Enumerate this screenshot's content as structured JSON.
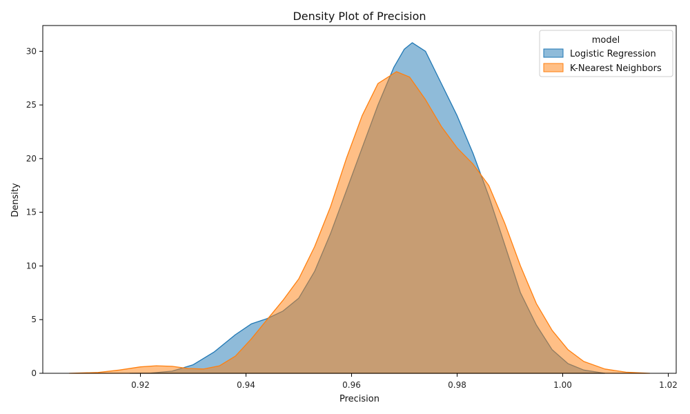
{
  "chart_data": {
    "type": "area",
    "title": "Density Plot of Precision",
    "xlabel": "Precision",
    "ylabel": "Density",
    "xlim": [
      0.9015,
      1.0215
    ],
    "ylim": [
      0,
      32.4
    ],
    "xticks": [
      0.92,
      0.94,
      0.96,
      0.98,
      1.0,
      1.02
    ],
    "xtick_labels": [
      "0.92",
      "0.94",
      "0.96",
      "0.98",
      "1.00",
      "1.02"
    ],
    "yticks": [
      0,
      5,
      10,
      15,
      20,
      25,
      30
    ],
    "ytick_labels": [
      "0",
      "5",
      "10",
      "15",
      "20",
      "25",
      "30"
    ],
    "grid": false,
    "legend": {
      "title": "model",
      "placement": "top-right"
    },
    "series": [
      {
        "name": "Logistic Regression",
        "color": "#1f77b4",
        "fill_opacity": 0.5,
        "points": [
          [
            0.918,
            0.0
          ],
          [
            0.922,
            0.02
          ],
          [
            0.926,
            0.2
          ],
          [
            0.93,
            0.8
          ],
          [
            0.934,
            2.0
          ],
          [
            0.938,
            3.6
          ],
          [
            0.941,
            4.6
          ],
          [
            0.944,
            5.1
          ],
          [
            0.947,
            5.8
          ],
          [
            0.95,
            7.0
          ],
          [
            0.953,
            9.5
          ],
          [
            0.956,
            13.0
          ],
          [
            0.959,
            17.0
          ],
          [
            0.962,
            21.0
          ],
          [
            0.965,
            25.0
          ],
          [
            0.968,
            28.5
          ],
          [
            0.97,
            30.2
          ],
          [
            0.9715,
            30.8
          ],
          [
            0.974,
            30.0
          ],
          [
            0.977,
            27.0
          ],
          [
            0.98,
            24.0
          ],
          [
            0.983,
            20.5
          ],
          [
            0.986,
            16.5
          ],
          [
            0.989,
            12.0
          ],
          [
            0.992,
            7.5
          ],
          [
            0.995,
            4.5
          ],
          [
            0.998,
            2.2
          ],
          [
            1.001,
            0.9
          ],
          [
            1.004,
            0.3
          ],
          [
            1.008,
            0.0
          ]
        ]
      },
      {
        "name": "K-Nearest Neighbors",
        "color": "#ff7f0e",
        "fill_opacity": 0.5,
        "points": [
          [
            0.9065,
            0.0
          ],
          [
            0.912,
            0.08
          ],
          [
            0.916,
            0.3
          ],
          [
            0.92,
            0.6
          ],
          [
            0.923,
            0.7
          ],
          [
            0.926,
            0.65
          ],
          [
            0.929,
            0.45
          ],
          [
            0.932,
            0.4
          ],
          [
            0.935,
            0.7
          ],
          [
            0.938,
            1.6
          ],
          [
            0.941,
            3.2
          ],
          [
            0.944,
            5.0
          ],
          [
            0.947,
            6.8
          ],
          [
            0.95,
            8.8
          ],
          [
            0.953,
            11.8
          ],
          [
            0.956,
            15.5
          ],
          [
            0.959,
            20.0
          ],
          [
            0.962,
            24.0
          ],
          [
            0.965,
            27.0
          ],
          [
            0.9685,
            28.1
          ],
          [
            0.971,
            27.6
          ],
          [
            0.974,
            25.5
          ],
          [
            0.977,
            23.0
          ],
          [
            0.98,
            21.0
          ],
          [
            0.983,
            19.5
          ],
          [
            0.986,
            17.5
          ],
          [
            0.989,
            14.0
          ],
          [
            0.992,
            10.0
          ],
          [
            0.995,
            6.5
          ],
          [
            0.998,
            4.0
          ],
          [
            1.001,
            2.2
          ],
          [
            1.004,
            1.1
          ],
          [
            1.008,
            0.4
          ],
          [
            1.012,
            0.1
          ],
          [
            1.0165,
            0.0
          ]
        ]
      }
    ]
  }
}
